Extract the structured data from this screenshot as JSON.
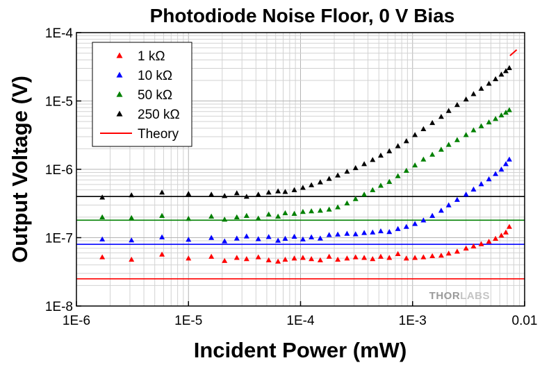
{
  "chart_data": {
    "type": "scatter",
    "title": "Photodiode Noise Floor, 0 V Bias",
    "xlabel": "Incident Power (mW)",
    "ylabel": "Output Voltage (V)",
    "xscale": "log",
    "yscale": "log",
    "xlim": [
      1e-06,
      0.01
    ],
    "ylim": [
      1e-08,
      0.0001
    ],
    "xticks": [
      1e-06,
      1e-05,
      0.0001,
      0.001,
      0.01
    ],
    "xtick_labels": [
      "1E-6",
      "1E-5",
      "1E-4",
      "1E-3",
      "0.01"
    ],
    "yticks": [
      1e-08,
      1e-07,
      1e-06,
      1e-05,
      0.0001
    ],
    "ytick_labels": [
      "1E-8",
      "1E-7",
      "1E-6",
      "1E-5",
      "1E-4"
    ],
    "grid": true,
    "legend_position": "top-left",
    "watermark": {
      "part1": "THOR",
      "part2": "LABS"
    },
    "series": [
      {
        "name": "1 kΩ",
        "marker": "triangle",
        "color": "#ff0000",
        "x": [
          1.7e-06,
          3.1e-06,
          5.8e-06,
          1e-05,
          1.6e-05,
          2.1e-05,
          2.7e-05,
          3.3e-05,
          4.2e-05,
          5.2e-05,
          6.3e-05,
          7.3e-05,
          8.8e-05,
          0.000105,
          0.000125,
          0.00015,
          0.00018,
          0.000215,
          0.00026,
          0.00031,
          0.00037,
          0.00044,
          0.00052,
          0.00062,
          0.00074,
          0.00088,
          0.00105,
          0.00125,
          0.0015,
          0.0018,
          0.0021,
          0.0025,
          0.003,
          0.0035,
          0.0041,
          0.0048,
          0.0055,
          0.0062,
          0.0068,
          0.0073
        ],
        "values": [
          5.2e-08,
          4.8e-08,
          5.7e-08,
          5e-08,
          5.3e-08,
          4.6e-08,
          5.1e-08,
          4.9e-08,
          5.2e-08,
          4.7e-08,
          4.5e-08,
          4.8e-08,
          5e-08,
          5.1e-08,
          4.9e-08,
          4.7e-08,
          5.3e-08,
          4.8e-08,
          5e-08,
          5.2e-08,
          5.1e-08,
          4.9e-08,
          5.3e-08,
          5.1e-08,
          5.8e-08,
          5e-08,
          5.1e-08,
          5.2e-08,
          5.4e-08,
          5.5e-08,
          5.9e-08,
          6.3e-08,
          7e-08,
          7.5e-08,
          8.1e-08,
          8.8e-08,
          9.7e-08,
          1.08e-07,
          1.2e-07,
          1.45e-07
        ]
      },
      {
        "name": "10 kΩ",
        "marker": "triangle",
        "color": "#0000ff",
        "x": [
          1.7e-06,
          3.1e-06,
          5.8e-06,
          1e-05,
          1.6e-05,
          2.1e-05,
          2.7e-05,
          3.3e-05,
          4.2e-05,
          5.2e-05,
          6.3e-05,
          7.3e-05,
          8.8e-05,
          0.000105,
          0.000125,
          0.00015,
          0.00018,
          0.000215,
          0.00026,
          0.00031,
          0.00037,
          0.00044,
          0.00052,
          0.00062,
          0.00074,
          0.00088,
          0.00105,
          0.00125,
          0.0015,
          0.0018,
          0.0021,
          0.0025,
          0.003,
          0.0035,
          0.0041,
          0.0048,
          0.0055,
          0.0062,
          0.0068,
          0.0073
        ],
        "values": [
          9.5e-08,
          9.2e-08,
          1.02e-07,
          9.4e-08,
          1e-07,
          8.9e-08,
          9.8e-08,
          1.05e-07,
          9.6e-08,
          1.03e-07,
          9.1e-08,
          9.7e-08,
          1.04e-07,
          9.5e-08,
          1.02e-07,
          9.8e-08,
          1.1e-07,
          1.12e-07,
          1.15e-07,
          1.13e-07,
          1.18e-07,
          1.2e-07,
          1.25e-07,
          1.22e-07,
          1.35e-07,
          1.45e-07,
          1.6e-07,
          1.8e-07,
          2.1e-07,
          2.5e-07,
          3e-07,
          3.6e-07,
          4.3e-07,
          5.1e-07,
          6.1e-07,
          7.2e-07,
          8.6e-07,
          1e-06,
          1.2e-06,
          1.4e-06
        ]
      },
      {
        "name": "50 kΩ",
        "marker": "triangle",
        "color": "#008000",
        "x": [
          1.7e-06,
          3.1e-06,
          5.8e-06,
          1e-05,
          1.6e-05,
          2.1e-05,
          2.7e-05,
          3.3e-05,
          4.2e-05,
          5.2e-05,
          6.3e-05,
          7.3e-05,
          8.8e-05,
          0.000105,
          0.000125,
          0.00015,
          0.00018,
          0.000215,
          0.00026,
          0.00031,
          0.00037,
          0.00044,
          0.00052,
          0.00062,
          0.00074,
          0.00088,
          0.00105,
          0.00125,
          0.0015,
          0.0018,
          0.0021,
          0.0025,
          0.003,
          0.0035,
          0.0041,
          0.0048,
          0.0055,
          0.0062,
          0.0068,
          0.0073
        ],
        "values": [
          2e-07,
          1.95e-07,
          2.1e-07,
          1.9e-07,
          2.05e-07,
          1.85e-07,
          2e-07,
          2.1e-07,
          1.92e-07,
          2.2e-07,
          2.05e-07,
          2.3e-07,
          2.25e-07,
          2.4e-07,
          2.45e-07,
          2.5e-07,
          2.6e-07,
          2.8e-07,
          3.2e-07,
          3.7e-07,
          4.3e-07,
          5e-07,
          5.8e-07,
          6.6e-07,
          8e-07,
          9.6e-07,
          1.15e-06,
          1.4e-06,
          1.65e-06,
          1.95e-06,
          2.3e-06,
          2.7e-06,
          3.2e-06,
          3.75e-06,
          4.3e-06,
          4.9e-06,
          5.5e-06,
          6.2e-06,
          6.8e-06,
          7.4e-06
        ]
      },
      {
        "name": "250 kΩ",
        "marker": "triangle",
        "color": "#000000",
        "x": [
          1.7e-06,
          3.1e-06,
          5.8e-06,
          1e-05,
          1.6e-05,
          2.1e-05,
          2.7e-05,
          3.3e-05,
          4.2e-05,
          5.2e-05,
          6.3e-05,
          7.3e-05,
          8.8e-05,
          0.000105,
          0.000125,
          0.00015,
          0.00018,
          0.000215,
          0.00026,
          0.00031,
          0.00037,
          0.00044,
          0.00052,
          0.00062,
          0.00074,
          0.00088,
          0.00105,
          0.00125,
          0.0015,
          0.0018,
          0.0021,
          0.0025,
          0.003,
          0.0035,
          0.0041,
          0.0048,
          0.0055,
          0.0062,
          0.0068,
          0.0073
        ],
        "values": [
          3.9e-07,
          4.2e-07,
          4.6e-07,
          4.4e-07,
          4.3e-07,
          4.1e-07,
          4.5e-07,
          4e-07,
          4.3e-07,
          4.6e-07,
          4.8e-07,
          4.7e-07,
          5e-07,
          5.4e-07,
          5.9e-07,
          6.5e-07,
          7.3e-07,
          8.2e-07,
          9.3e-07,
          1.05e-06,
          1.2e-06,
          1.38e-06,
          1.6e-06,
          1.85e-06,
          2.2e-06,
          2.6e-06,
          3.2e-06,
          3.9e-06,
          4.8e-06,
          5.9e-06,
          7.2e-06,
          8.8e-06,
          1.06e-05,
          1.27e-05,
          1.52e-05,
          1.8e-05,
          2.1e-05,
          2.45e-05,
          2.75e-05,
          3.05e-05
        ]
      }
    ],
    "reference_lines": [
      {
        "color": "#000000",
        "y": 4e-07
      },
      {
        "color": "#008000",
        "y": 1.8e-07
      },
      {
        "color": "#0000ff",
        "y": 8e-08
      },
      {
        "color": "#ff0000",
        "y": 2.5e-08
      }
    ],
    "theory": {
      "name": "Theory",
      "color": "#ff0000",
      "x": [
        0.0074,
        0.0085
      ],
      "values": [
        4.6e-05,
        5.6e-05
      ]
    }
  }
}
